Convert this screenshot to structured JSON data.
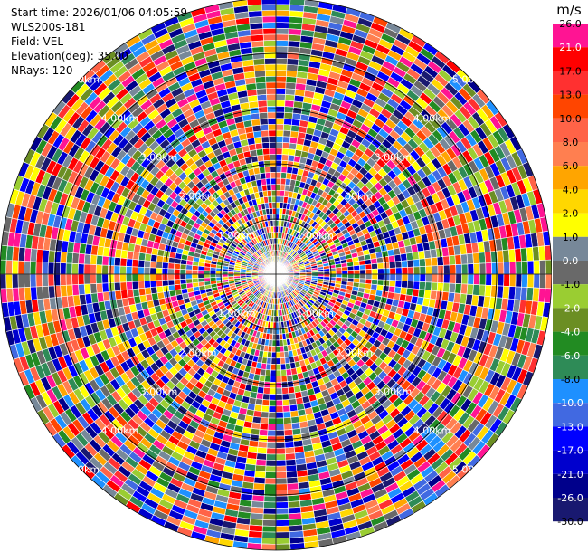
{
  "header": {
    "start_time": "Start time: 2026/01/06 04:05:59",
    "instrument": "WLS200s-181",
    "field": "Field: VEL",
    "elevation": "Elevation(deg): 35.00",
    "nrays": "NRays: 120"
  },
  "colorbar": {
    "unit": "m/s",
    "levels": [
      {
        "label": "26.0",
        "color": "#ff1493"
      },
      {
        "label": "21.0",
        "color": "#ff0000"
      },
      {
        "label": "17.0",
        "color": "#ff3030"
      },
      {
        "label": "13.0",
        "color": "#ff4500"
      },
      {
        "label": "10.0",
        "color": "#ff6347"
      },
      {
        "label": "8.0",
        "color": "#ff7f50"
      },
      {
        "label": "6.0",
        "color": "#ffa500"
      },
      {
        "label": "4.0",
        "color": "#ffd700"
      },
      {
        "label": "2.0",
        "color": "#ffff00"
      },
      {
        "label": "1.0",
        "color": "#778899"
      },
      {
        "label": "0.0",
        "color": "#696969"
      },
      {
        "label": "-1.0",
        "color": "#9acd32"
      },
      {
        "label": "-2.0",
        "color": "#6b8e23"
      },
      {
        "label": "-4.0",
        "color": "#228b22"
      },
      {
        "label": "-6.0",
        "color": "#2e8b57"
      },
      {
        "label": "-8.0",
        "color": "#1e90ff"
      },
      {
        "label": "-10.0",
        "color": "#4169e1"
      },
      {
        "label": "-13.0",
        "color": "#0000ff"
      },
      {
        "label": "-17.0",
        "color": "#0000cd"
      },
      {
        "label": "-21.0",
        "color": "#00008b"
      },
      {
        "label": "-26.0",
        "color": "#191970"
      },
      {
        "label": "-30.0",
        "color": ""
      }
    ]
  },
  "chart_data": {
    "type": "polar-ppi",
    "field": "VEL",
    "nrays": 120,
    "range_rings_km": [
      1.0,
      2.0,
      3.0,
      4.0,
      5.0
    ],
    "ring_labels": [
      "1.00km",
      "2.00km",
      "3.00km",
      "4.00km",
      "5.00km"
    ],
    "max_range_km": 5.0,
    "azimuth_lines": 4,
    "colormap_labels_ms": [
      26.0,
      21.0,
      17.0,
      13.0,
      10.0,
      8.0,
      6.0,
      4.0,
      2.0,
      1.0,
      0.0,
      -1.0,
      -2.0,
      -4.0,
      -6.0,
      -8.0,
      -10.0,
      -13.0,
      -17.0,
      -21.0,
      -26.0,
      -30.0
    ]
  }
}
